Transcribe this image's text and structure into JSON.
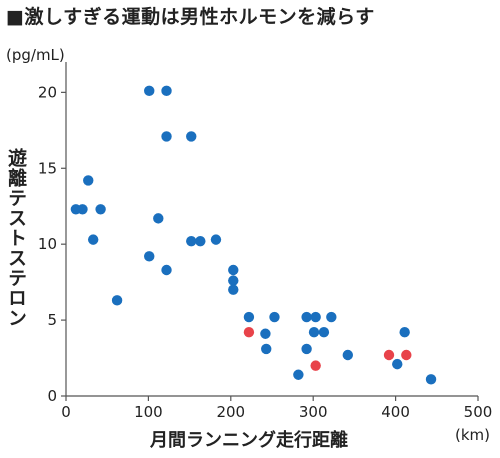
{
  "title": "■激しすぎる運動は男性ホルモンを減らす",
  "chart_data": {
    "type": "scatter",
    "ylabel": "遊離テストステロン",
    "yunit": "(pg/mL)",
    "xlabel": "月間ランニング走行距離",
    "xunit": "(km)",
    "xlim": [
      0,
      500
    ],
    "ylim": [
      0,
      22
    ],
    "xticks": [
      0,
      100,
      200,
      300,
      400,
      500
    ],
    "yticks": [
      0,
      5,
      10,
      15,
      20
    ],
    "grid": false,
    "colors": {
      "blue": "#1a6fbe",
      "red": "#e8434a"
    },
    "points": [
      {
        "x": 12,
        "y": 12.3,
        "color": "blue"
      },
      {
        "x": 20,
        "y": 12.3,
        "color": "blue"
      },
      {
        "x": 27,
        "y": 14.2,
        "color": "blue"
      },
      {
        "x": 33,
        "y": 10.3,
        "color": "blue"
      },
      {
        "x": 42,
        "y": 12.3,
        "color": "blue"
      },
      {
        "x": 62,
        "y": 6.3,
        "color": "blue"
      },
      {
        "x": 101,
        "y": 20.1,
        "color": "blue"
      },
      {
        "x": 101,
        "y": 9.2,
        "color": "blue"
      },
      {
        "x": 112,
        "y": 11.7,
        "color": "blue"
      },
      {
        "x": 122,
        "y": 20.1,
        "color": "blue"
      },
      {
        "x": 122,
        "y": 17.1,
        "color": "blue"
      },
      {
        "x": 122,
        "y": 8.3,
        "color": "blue"
      },
      {
        "x": 152,
        "y": 17.1,
        "color": "blue"
      },
      {
        "x": 152,
        "y": 10.2,
        "color": "blue"
      },
      {
        "x": 163,
        "y": 10.2,
        "color": "blue"
      },
      {
        "x": 182,
        "y": 10.3,
        "color": "blue"
      },
      {
        "x": 203,
        "y": 8.3,
        "color": "blue"
      },
      {
        "x": 203,
        "y": 7.6,
        "color": "blue"
      },
      {
        "x": 203,
        "y": 7.0,
        "color": "blue"
      },
      {
        "x": 222,
        "y": 5.2,
        "color": "blue"
      },
      {
        "x": 222,
        "y": 4.2,
        "color": "red"
      },
      {
        "x": 242,
        "y": 4.1,
        "color": "blue"
      },
      {
        "x": 243,
        "y": 3.1,
        "color": "blue"
      },
      {
        "x": 253,
        "y": 5.2,
        "color": "blue"
      },
      {
        "x": 282,
        "y": 1.4,
        "color": "blue"
      },
      {
        "x": 292,
        "y": 5.2,
        "color": "blue"
      },
      {
        "x": 292,
        "y": 3.1,
        "color": "blue"
      },
      {
        "x": 301,
        "y": 4.2,
        "color": "blue"
      },
      {
        "x": 303,
        "y": 5.2,
        "color": "blue"
      },
      {
        "x": 303,
        "y": 2.0,
        "color": "red"
      },
      {
        "x": 313,
        "y": 4.2,
        "color": "blue"
      },
      {
        "x": 322,
        "y": 5.2,
        "color": "blue"
      },
      {
        "x": 342,
        "y": 2.7,
        "color": "blue"
      },
      {
        "x": 392,
        "y": 2.7,
        "color": "red"
      },
      {
        "x": 402,
        "y": 2.1,
        "color": "blue"
      },
      {
        "x": 411,
        "y": 4.2,
        "color": "blue"
      },
      {
        "x": 413,
        "y": 2.7,
        "color": "red"
      },
      {
        "x": 443,
        "y": 1.1,
        "color": "blue"
      }
    ]
  }
}
